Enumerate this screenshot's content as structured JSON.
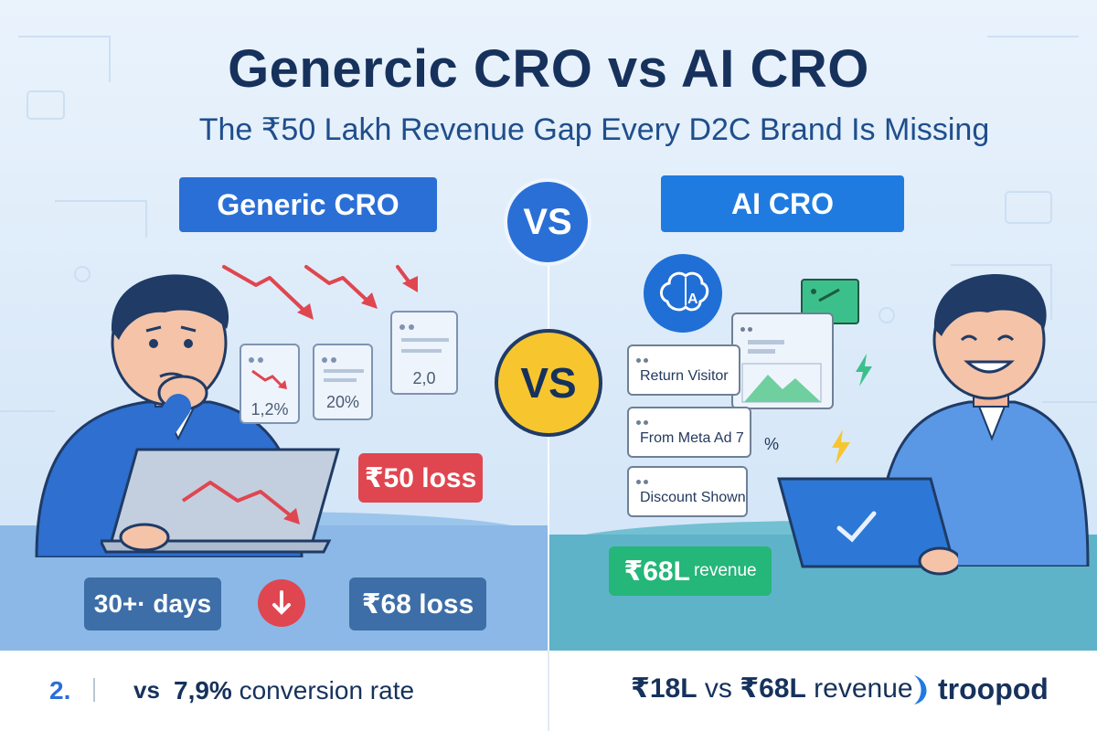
{
  "header": {
    "title": "Genercic CRO vs AI CRO",
    "subtitle": "The ₹50 Lakh Revenue Gap Every D2C Brand Is Missing"
  },
  "left": {
    "label": "Generic CRO",
    "cards": [
      "1,2%",
      "20%",
      "2,0"
    ],
    "loss_tag": "₹50 loss",
    "days_tag": "30+· days",
    "loss2_tag": "₹68 loss"
  },
  "center": {
    "vs_top": "VS",
    "vs_mid": "VS"
  },
  "right": {
    "label": "AI CRO",
    "visitor_cards": [
      "Return Visitor",
      "From Meta Ad 7",
      "Discount Shown"
    ],
    "percent_symbol": "%",
    "revenue_value": "₹68L",
    "revenue_word": "revenue"
  },
  "footer": {
    "left_number": "2.",
    "left_vs": "vs",
    "left_rate_value": "7,9%",
    "left_rate_text": " conversion rate",
    "right_value_a": "₹18L",
    "right_vs": " vs ",
    "right_value_b": "₹68L",
    "right_text": " revenue",
    "brand": "troopod"
  },
  "colors": {
    "title": "#16325c",
    "accent_blue": "#2a6fd6",
    "loss_red": "#e04650",
    "success_green": "#25b679",
    "vs_yellow": "#f7c62f"
  },
  "icons": [
    "down-trend-arrow-icon",
    "alert-down-icon",
    "brain-ai-icon",
    "lightning-icon",
    "checkmark-icon",
    "image-placeholder-icon",
    "troopod-logo-icon"
  ]
}
